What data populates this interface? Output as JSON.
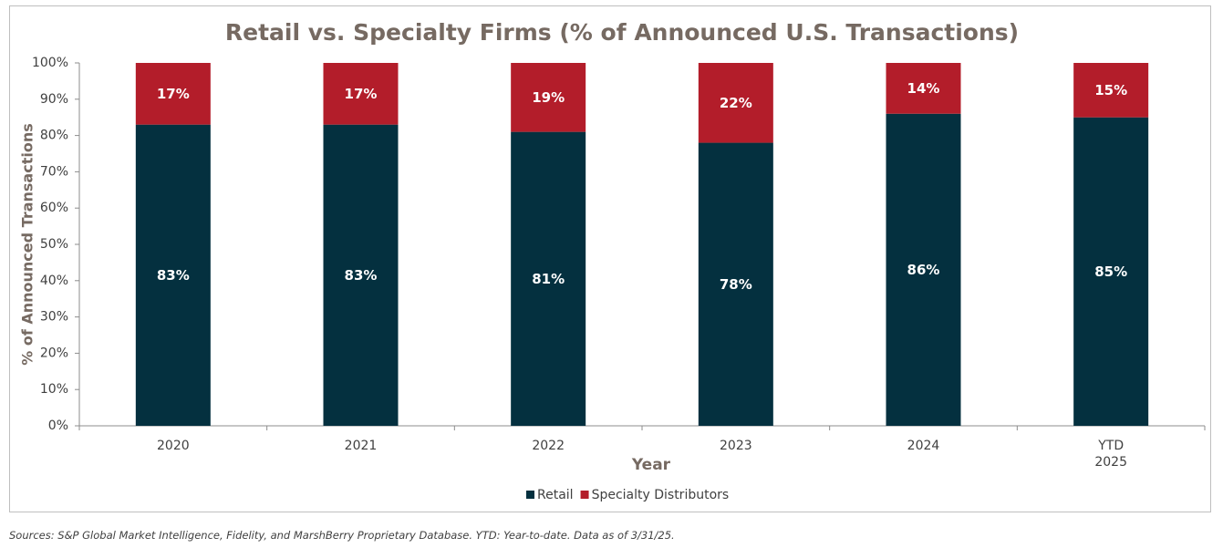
{
  "chart_data": {
    "type": "bar",
    "stacked": true,
    "title": "Retail vs. Specialty Firms  (% of Announced U.S. Transactions)",
    "xlabel": "Year",
    "ylabel": "% of Announced Transactions",
    "categories": [
      [
        "2020"
      ],
      [
        "2021"
      ],
      [
        "2022"
      ],
      [
        "2023"
      ],
      [
        "2024"
      ],
      [
        "YTD",
        "2025"
      ]
    ],
    "series": [
      {
        "name": "Retail",
        "color": "#04303f",
        "values": [
          83,
          83,
          81,
          78,
          86,
          85
        ],
        "labels": [
          "83%",
          "83%",
          "81%",
          "78%",
          "86%",
          "85%"
        ]
      },
      {
        "name": "Specialty Distributors",
        "color": "#b31d2a",
        "values": [
          17,
          17,
          19,
          22,
          14,
          15
        ],
        "labels": [
          "17%",
          "17%",
          "19%",
          "22%",
          "14%",
          "15%"
        ]
      }
    ],
    "ylim": [
      0,
      100
    ],
    "yticks": [
      0,
      10,
      20,
      30,
      40,
      50,
      60,
      70,
      80,
      90,
      100
    ],
    "ytick_labels": [
      "0%",
      "10%",
      "20%",
      "30%",
      "40%",
      "50%",
      "60%",
      "70%",
      "80%",
      "90%",
      "100%"
    ],
    "legend": "bottom",
    "grid": false,
    "colors": {
      "title": "#766a62",
      "axis_label": "#766a62",
      "tick": "#404040"
    }
  },
  "footnote": "Sources: S&P Global Market Intelligence, Fidelity, and MarshBerry Proprietary Database. YTD: Year-to-date. Data as of 3/31/25."
}
